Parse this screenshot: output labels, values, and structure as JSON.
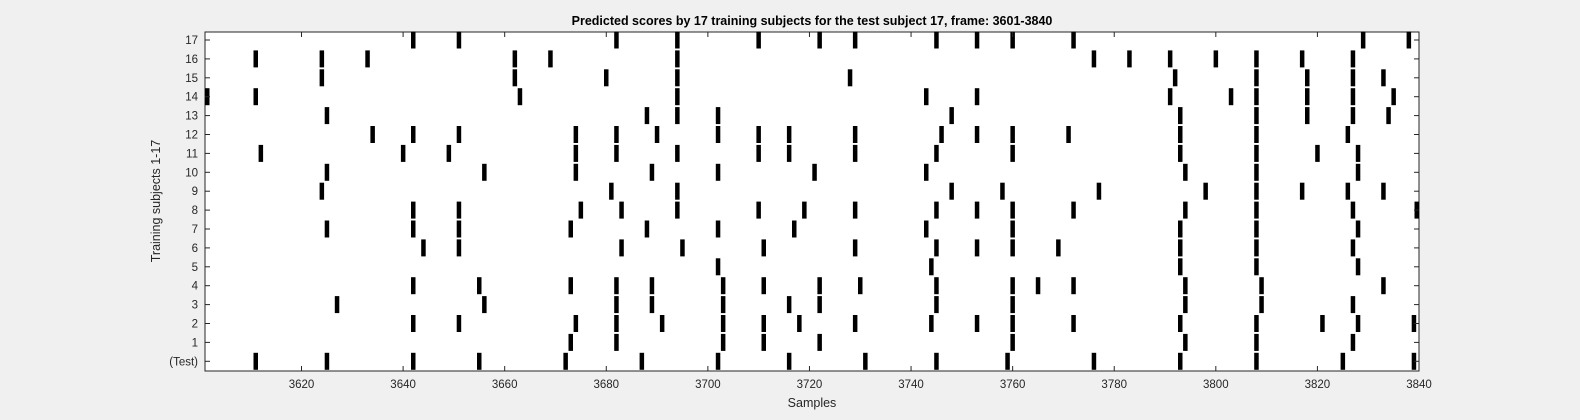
{
  "chart_data": {
    "type": "raster",
    "title": "Predicted scores by 17 training subjects for the test subject 17, frame: 3601-3840",
    "xlabel": "Samples",
    "ylabel": "Training subjects 1-17",
    "xlim": [
      3601,
      3840
    ],
    "xticks": [
      3620,
      3640,
      3660,
      3680,
      3700,
      3720,
      3740,
      3760,
      3780,
      3800,
      3820,
      3840
    ],
    "ytick_labels": [
      "(Test)",
      "1",
      "2",
      "3",
      "4",
      "5",
      "6",
      "7",
      "8",
      "9",
      "10",
      "11",
      "12",
      "13",
      "14",
      "15",
      "16",
      "17"
    ],
    "grid": false,
    "legend": "none",
    "colors": {
      "background": "#f0f0f0",
      "axes": "#ffffff",
      "mark": "#000000",
      "axis_line": "#262626"
    },
    "rows": [
      {
        "label": "(Test)",
        "events": [
          3611,
          3625,
          3642,
          3655,
          3672,
          3687,
          3702,
          3716,
          3731,
          3745,
          3759,
          3776,
          3793,
          3808,
          3825,
          3839
        ]
      },
      {
        "label": "1",
        "events": [
          3673,
          3682,
          3703,
          3711,
          3722,
          3760,
          3794,
          3808,
          3827
        ]
      },
      {
        "label": "2",
        "events": [
          3642,
          3651,
          3674,
          3682,
          3691,
          3703,
          3711,
          3718,
          3729,
          3744,
          3753,
          3760,
          3772,
          3793,
          3808,
          3821,
          3828,
          3839
        ]
      },
      {
        "label": "3",
        "events": [
          3627,
          3656,
          3682,
          3689,
          3703,
          3716,
          3722,
          3745,
          3760,
          3794,
          3809,
          3827
        ]
      },
      {
        "label": "4",
        "events": [
          3642,
          3655,
          3673,
          3682,
          3689,
          3703,
          3711,
          3722,
          3730,
          3745,
          3760,
          3765,
          3772,
          3794,
          3809,
          3833
        ]
      },
      {
        "label": "5",
        "events": [
          3702,
          3744,
          3793,
          3808,
          3828
        ]
      },
      {
        "label": "6",
        "events": [
          3644,
          3651,
          3683,
          3695,
          3711,
          3729,
          3745,
          3753,
          3760,
          3769,
          3793,
          3808,
          3827
        ]
      },
      {
        "label": "7",
        "events": [
          3625,
          3642,
          3651,
          3673,
          3688,
          3702,
          3717,
          3743,
          3760,
          3793,
          3808,
          3828
        ]
      },
      {
        "label": "8",
        "events": [
          3642,
          3651,
          3675,
          3683,
          3694,
          3710,
          3719,
          3729,
          3745,
          3753,
          3760,
          3772,
          3794,
          3808,
          3827,
          3840
        ]
      },
      {
        "label": "9",
        "events": [
          3624,
          3681,
          3694,
          3748,
          3758,
          3777,
          3798,
          3808,
          3817,
          3826,
          3833
        ]
      },
      {
        "label": "10",
        "events": [
          3625,
          3656,
          3674,
          3689,
          3702,
          3721,
          3743,
          3794,
          3808,
          3828
        ]
      },
      {
        "label": "11",
        "events": [
          3612,
          3640,
          3649,
          3674,
          3682,
          3694,
          3710,
          3716,
          3729,
          3745,
          3760,
          3793,
          3808,
          3820,
          3828
        ]
      },
      {
        "label": "12",
        "events": [
          3634,
          3642,
          3651,
          3674,
          3682,
          3690,
          3702,
          3710,
          3716,
          3729,
          3746,
          3753,
          3760,
          3771,
          3793,
          3808,
          3826
        ]
      },
      {
        "label": "13",
        "events": [
          3625,
          3688,
          3694,
          3702,
          3748,
          3793,
          3808,
          3818,
          3827,
          3834
        ]
      },
      {
        "label": "14",
        "events": [
          3601,
          3611,
          3663,
          3694,
          3743,
          3753,
          3791,
          3803,
          3808,
          3818,
          3827,
          3835
        ]
      },
      {
        "label": "15",
        "events": [
          3624,
          3662,
          3680,
          3694,
          3728,
          3792,
          3808,
          3818,
          3827,
          3833
        ]
      },
      {
        "label": "16",
        "events": [
          3611,
          3624,
          3633,
          3662,
          3669,
          3694,
          3776,
          3783,
          3791,
          3800,
          3808,
          3817,
          3827
        ]
      },
      {
        "label": "17",
        "events": [
          3642,
          3651,
          3682,
          3694,
          3710,
          3722,
          3729,
          3745,
          3753,
          3760,
          3772,
          3829,
          3838
        ]
      }
    ]
  }
}
